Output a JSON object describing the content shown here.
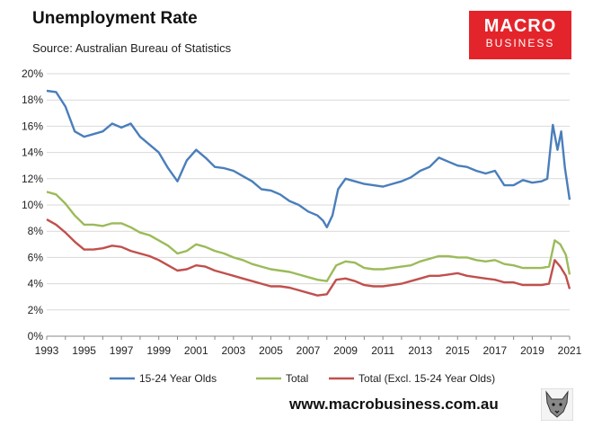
{
  "chart_data": {
    "type": "line",
    "title": "Unemployment Rate",
    "subtitle": "Source: Australian Bureau of Statistics",
    "xlabel": "",
    "ylabel": "",
    "xlim": [
      1993,
      2021
    ],
    "ylim": [
      0,
      20
    ],
    "x_ticks": [
      "1993",
      "1995",
      "1997",
      "1999",
      "2001",
      "2003",
      "2005",
      "2007",
      "2009",
      "2011",
      "2013",
      "2015",
      "2017",
      "2019",
      "2021"
    ],
    "y_ticks": [
      "0%",
      "2%",
      "4%",
      "6%",
      "8%",
      "10%",
      "12%",
      "14%",
      "16%",
      "18%",
      "20%"
    ],
    "legend_position": "bottom",
    "series": [
      {
        "name": "15-24 Year Olds",
        "color": "#4a7ebb",
        "points": [
          [
            1993,
            18.7
          ],
          [
            1993.5,
            18.6
          ],
          [
            1994,
            17.5
          ],
          [
            1994.5,
            15.6
          ],
          [
            1995,
            15.2
          ],
          [
            1995.5,
            15.4
          ],
          [
            1996,
            15.6
          ],
          [
            1996.5,
            16.2
          ],
          [
            1997,
            15.9
          ],
          [
            1997.5,
            16.2
          ],
          [
            1998,
            15.2
          ],
          [
            1998.5,
            14.6
          ],
          [
            1999,
            14.0
          ],
          [
            1999.5,
            12.8
          ],
          [
            2000,
            11.8
          ],
          [
            2000.5,
            13.4
          ],
          [
            2001,
            14.2
          ],
          [
            2001.5,
            13.6
          ],
          [
            2002,
            12.9
          ],
          [
            2002.5,
            12.8
          ],
          [
            2003,
            12.6
          ],
          [
            2003.5,
            12.2
          ],
          [
            2004,
            11.8
          ],
          [
            2004.5,
            11.2
          ],
          [
            2005,
            11.1
          ],
          [
            2005.5,
            10.8
          ],
          [
            2006,
            10.3
          ],
          [
            2006.5,
            10.0
          ],
          [
            2007,
            9.5
          ],
          [
            2007.5,
            9.2
          ],
          [
            2007.8,
            8.8
          ],
          [
            2008,
            8.3
          ],
          [
            2008.3,
            9.2
          ],
          [
            2008.6,
            11.2
          ],
          [
            2009,
            12.0
          ],
          [
            2009.5,
            11.8
          ],
          [
            2010,
            11.6
          ],
          [
            2010.5,
            11.5
          ],
          [
            2011,
            11.4
          ],
          [
            2011.5,
            11.6
          ],
          [
            2012,
            11.8
          ],
          [
            2012.5,
            12.1
          ],
          [
            2013,
            12.6
          ],
          [
            2013.5,
            12.9
          ],
          [
            2014,
            13.6
          ],
          [
            2014.5,
            13.3
          ],
          [
            2015,
            13.0
          ],
          [
            2015.5,
            12.9
          ],
          [
            2016,
            12.6
          ],
          [
            2016.5,
            12.4
          ],
          [
            2017,
            12.6
          ],
          [
            2017.5,
            11.5
          ],
          [
            2018,
            11.5
          ],
          [
            2018.5,
            11.9
          ],
          [
            2019,
            11.7
          ],
          [
            2019.5,
            11.8
          ],
          [
            2019.8,
            12.0
          ],
          [
            2020.1,
            16.1
          ],
          [
            2020.35,
            14.2
          ],
          [
            2020.55,
            15.6
          ],
          [
            2020.75,
            12.8
          ],
          [
            2021,
            10.4
          ]
        ]
      },
      {
        "name": "Total",
        "color": "#9bbb59",
        "points": [
          [
            1993,
            11.0
          ],
          [
            1993.5,
            10.8
          ],
          [
            1994,
            10.1
          ],
          [
            1994.5,
            9.2
          ],
          [
            1995,
            8.5
          ],
          [
            1995.5,
            8.5
          ],
          [
            1996,
            8.4
          ],
          [
            1996.5,
            8.6
          ],
          [
            1997,
            8.6
          ],
          [
            1997.5,
            8.3
          ],
          [
            1998,
            7.9
          ],
          [
            1998.5,
            7.7
          ],
          [
            1999,
            7.3
          ],
          [
            1999.5,
            6.9
          ],
          [
            2000,
            6.3
          ],
          [
            2000.5,
            6.5
          ],
          [
            2001,
            7.0
          ],
          [
            2001.5,
            6.8
          ],
          [
            2002,
            6.5
          ],
          [
            2002.5,
            6.3
          ],
          [
            2003,
            6.0
          ],
          [
            2003.5,
            5.8
          ],
          [
            2004,
            5.5
          ],
          [
            2004.5,
            5.3
          ],
          [
            2005,
            5.1
          ],
          [
            2005.5,
            5.0
          ],
          [
            2006,
            4.9
          ],
          [
            2006.5,
            4.7
          ],
          [
            2007,
            4.5
          ],
          [
            2007.5,
            4.3
          ],
          [
            2008,
            4.2
          ],
          [
            2008.5,
            5.4
          ],
          [
            2009,
            5.7
          ],
          [
            2009.5,
            5.6
          ],
          [
            2010,
            5.2
          ],
          [
            2010.5,
            5.1
          ],
          [
            2011,
            5.1
          ],
          [
            2011.5,
            5.2
          ],
          [
            2012,
            5.3
          ],
          [
            2012.5,
            5.4
          ],
          [
            2013,
            5.7
          ],
          [
            2013.5,
            5.9
          ],
          [
            2014,
            6.1
          ],
          [
            2014.5,
            6.1
          ],
          [
            2015,
            6.0
          ],
          [
            2015.5,
            6.0
          ],
          [
            2016,
            5.8
          ],
          [
            2016.5,
            5.7
          ],
          [
            2017,
            5.8
          ],
          [
            2017.5,
            5.5
          ],
          [
            2018,
            5.4
          ],
          [
            2018.5,
            5.2
          ],
          [
            2019,
            5.2
          ],
          [
            2019.5,
            5.2
          ],
          [
            2019.9,
            5.3
          ],
          [
            2020.2,
            7.3
          ],
          [
            2020.5,
            7.0
          ],
          [
            2020.8,
            6.2
          ],
          [
            2021,
            4.7
          ]
        ]
      },
      {
        "name": "Total (Excl. 15-24 Year Olds)",
        "color": "#c0504d",
        "points": [
          [
            1993,
            8.9
          ],
          [
            1993.5,
            8.5
          ],
          [
            1994,
            7.9
          ],
          [
            1994.5,
            7.2
          ],
          [
            1995,
            6.6
          ],
          [
            1995.5,
            6.6
          ],
          [
            1996,
            6.7
          ],
          [
            1996.5,
            6.9
          ],
          [
            1997,
            6.8
          ],
          [
            1997.5,
            6.5
          ],
          [
            1998,
            6.3
          ],
          [
            1998.5,
            6.1
          ],
          [
            1999,
            5.8
          ],
          [
            1999.5,
            5.4
          ],
          [
            2000,
            5.0
          ],
          [
            2000.5,
            5.1
          ],
          [
            2001,
            5.4
          ],
          [
            2001.5,
            5.3
          ],
          [
            2002,
            5.0
          ],
          [
            2002.5,
            4.8
          ],
          [
            2003,
            4.6
          ],
          [
            2003.5,
            4.4
          ],
          [
            2004,
            4.2
          ],
          [
            2004.5,
            4.0
          ],
          [
            2005,
            3.8
          ],
          [
            2005.5,
            3.8
          ],
          [
            2006,
            3.7
          ],
          [
            2006.5,
            3.5
          ],
          [
            2007,
            3.3
          ],
          [
            2007.5,
            3.1
          ],
          [
            2008,
            3.2
          ],
          [
            2008.5,
            4.3
          ],
          [
            2009,
            4.4
          ],
          [
            2009.5,
            4.2
          ],
          [
            2010,
            3.9
          ],
          [
            2010.5,
            3.8
          ],
          [
            2011,
            3.8
          ],
          [
            2011.5,
            3.9
          ],
          [
            2012,
            4.0
          ],
          [
            2012.5,
            4.2
          ],
          [
            2013,
            4.4
          ],
          [
            2013.5,
            4.6
          ],
          [
            2014,
            4.6
          ],
          [
            2014.5,
            4.7
          ],
          [
            2015,
            4.8
          ],
          [
            2015.5,
            4.6
          ],
          [
            2016,
            4.5
          ],
          [
            2016.5,
            4.4
          ],
          [
            2017,
            4.3
          ],
          [
            2017.5,
            4.1
          ],
          [
            2018,
            4.1
          ],
          [
            2018.5,
            3.9
          ],
          [
            2019,
            3.9
          ],
          [
            2019.5,
            3.9
          ],
          [
            2019.9,
            4.0
          ],
          [
            2020.2,
            5.8
          ],
          [
            2020.5,
            5.3
          ],
          [
            2020.8,
            4.6
          ],
          [
            2021,
            3.6
          ]
        ]
      }
    ]
  },
  "header": {
    "title": "Unemployment Rate",
    "subtitle": "Source: Australian Bureau of Statistics"
  },
  "logo": {
    "line1": "MACRO",
    "line2": "BUSINESS"
  },
  "footer": {
    "site": "www.macrobusiness.com.au"
  }
}
